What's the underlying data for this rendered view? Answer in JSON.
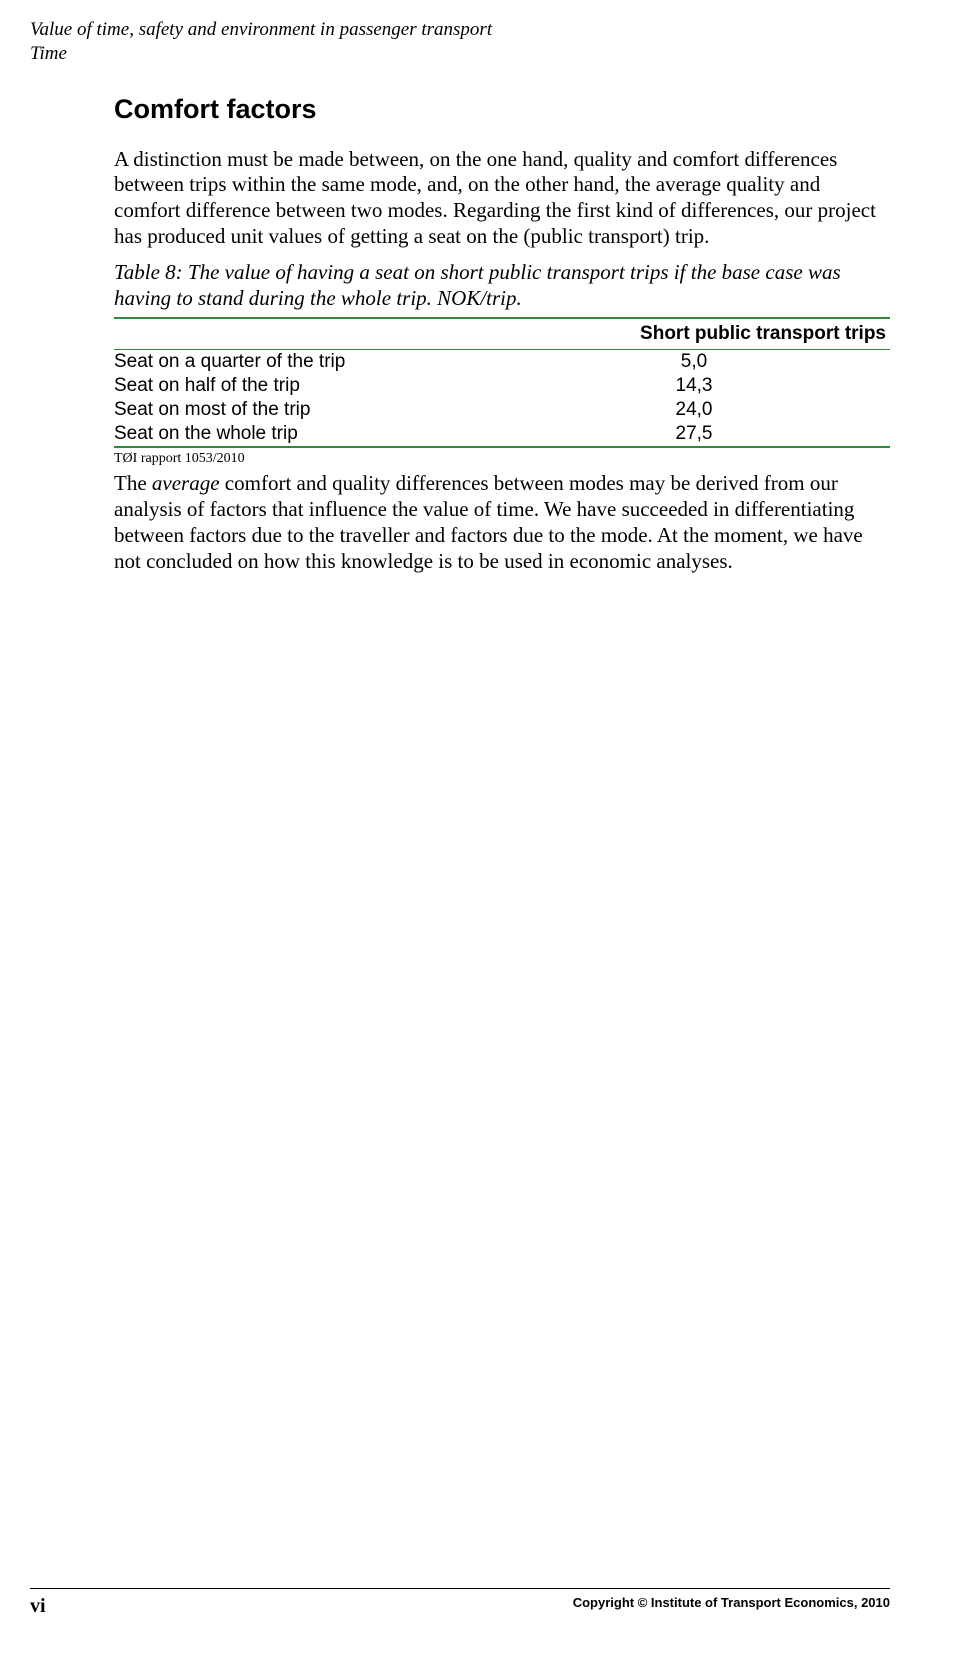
{
  "header": {
    "line1": "Value of time, safety and environment in passenger transport",
    "line2": "Time"
  },
  "section": {
    "title": "Comfort factors",
    "para1": "A distinction must be made between, on the one hand, quality and comfort differences between trips within the same mode, and, on the other hand, the average quality and comfort difference between two modes. Regarding the first kind of differences, our project has produced unit values of getting a seat on the (public transport) trip.",
    "table_caption": "Table 8: The value of having a seat on short public transport trips if the base case was having to stand during the whole trip. NOK/trip.",
    "table": {
      "type": "table",
      "border_color": "#2f8a3a",
      "header_font": "Arial",
      "body_font": "Arial",
      "columns": [
        "",
        "Short public transport trips"
      ],
      "rows": [
        [
          "Seat on a quarter of the trip",
          "5,0"
        ],
        [
          "Seat on half of the trip",
          "14,3"
        ],
        [
          "Seat on most of the trip",
          "24,0"
        ],
        [
          "Seat on the whole trip",
          "27,5"
        ]
      ]
    },
    "table_source": "TØI rapport 1053/2010",
    "para2_pre": "The ",
    "para2_em": "average",
    "para2_post": " comfort and quality differences between modes may be derived from our analysis of factors that influence the value of time. We have succeeded in differentiating between factors due to the traveller and factors due to the mode. At the moment, we have not concluded on how this knowledge is to be used in economic analyses."
  },
  "footer": {
    "page_number": "vi",
    "copyright": "Copyright © Institute of Transport Economics, 2010"
  }
}
